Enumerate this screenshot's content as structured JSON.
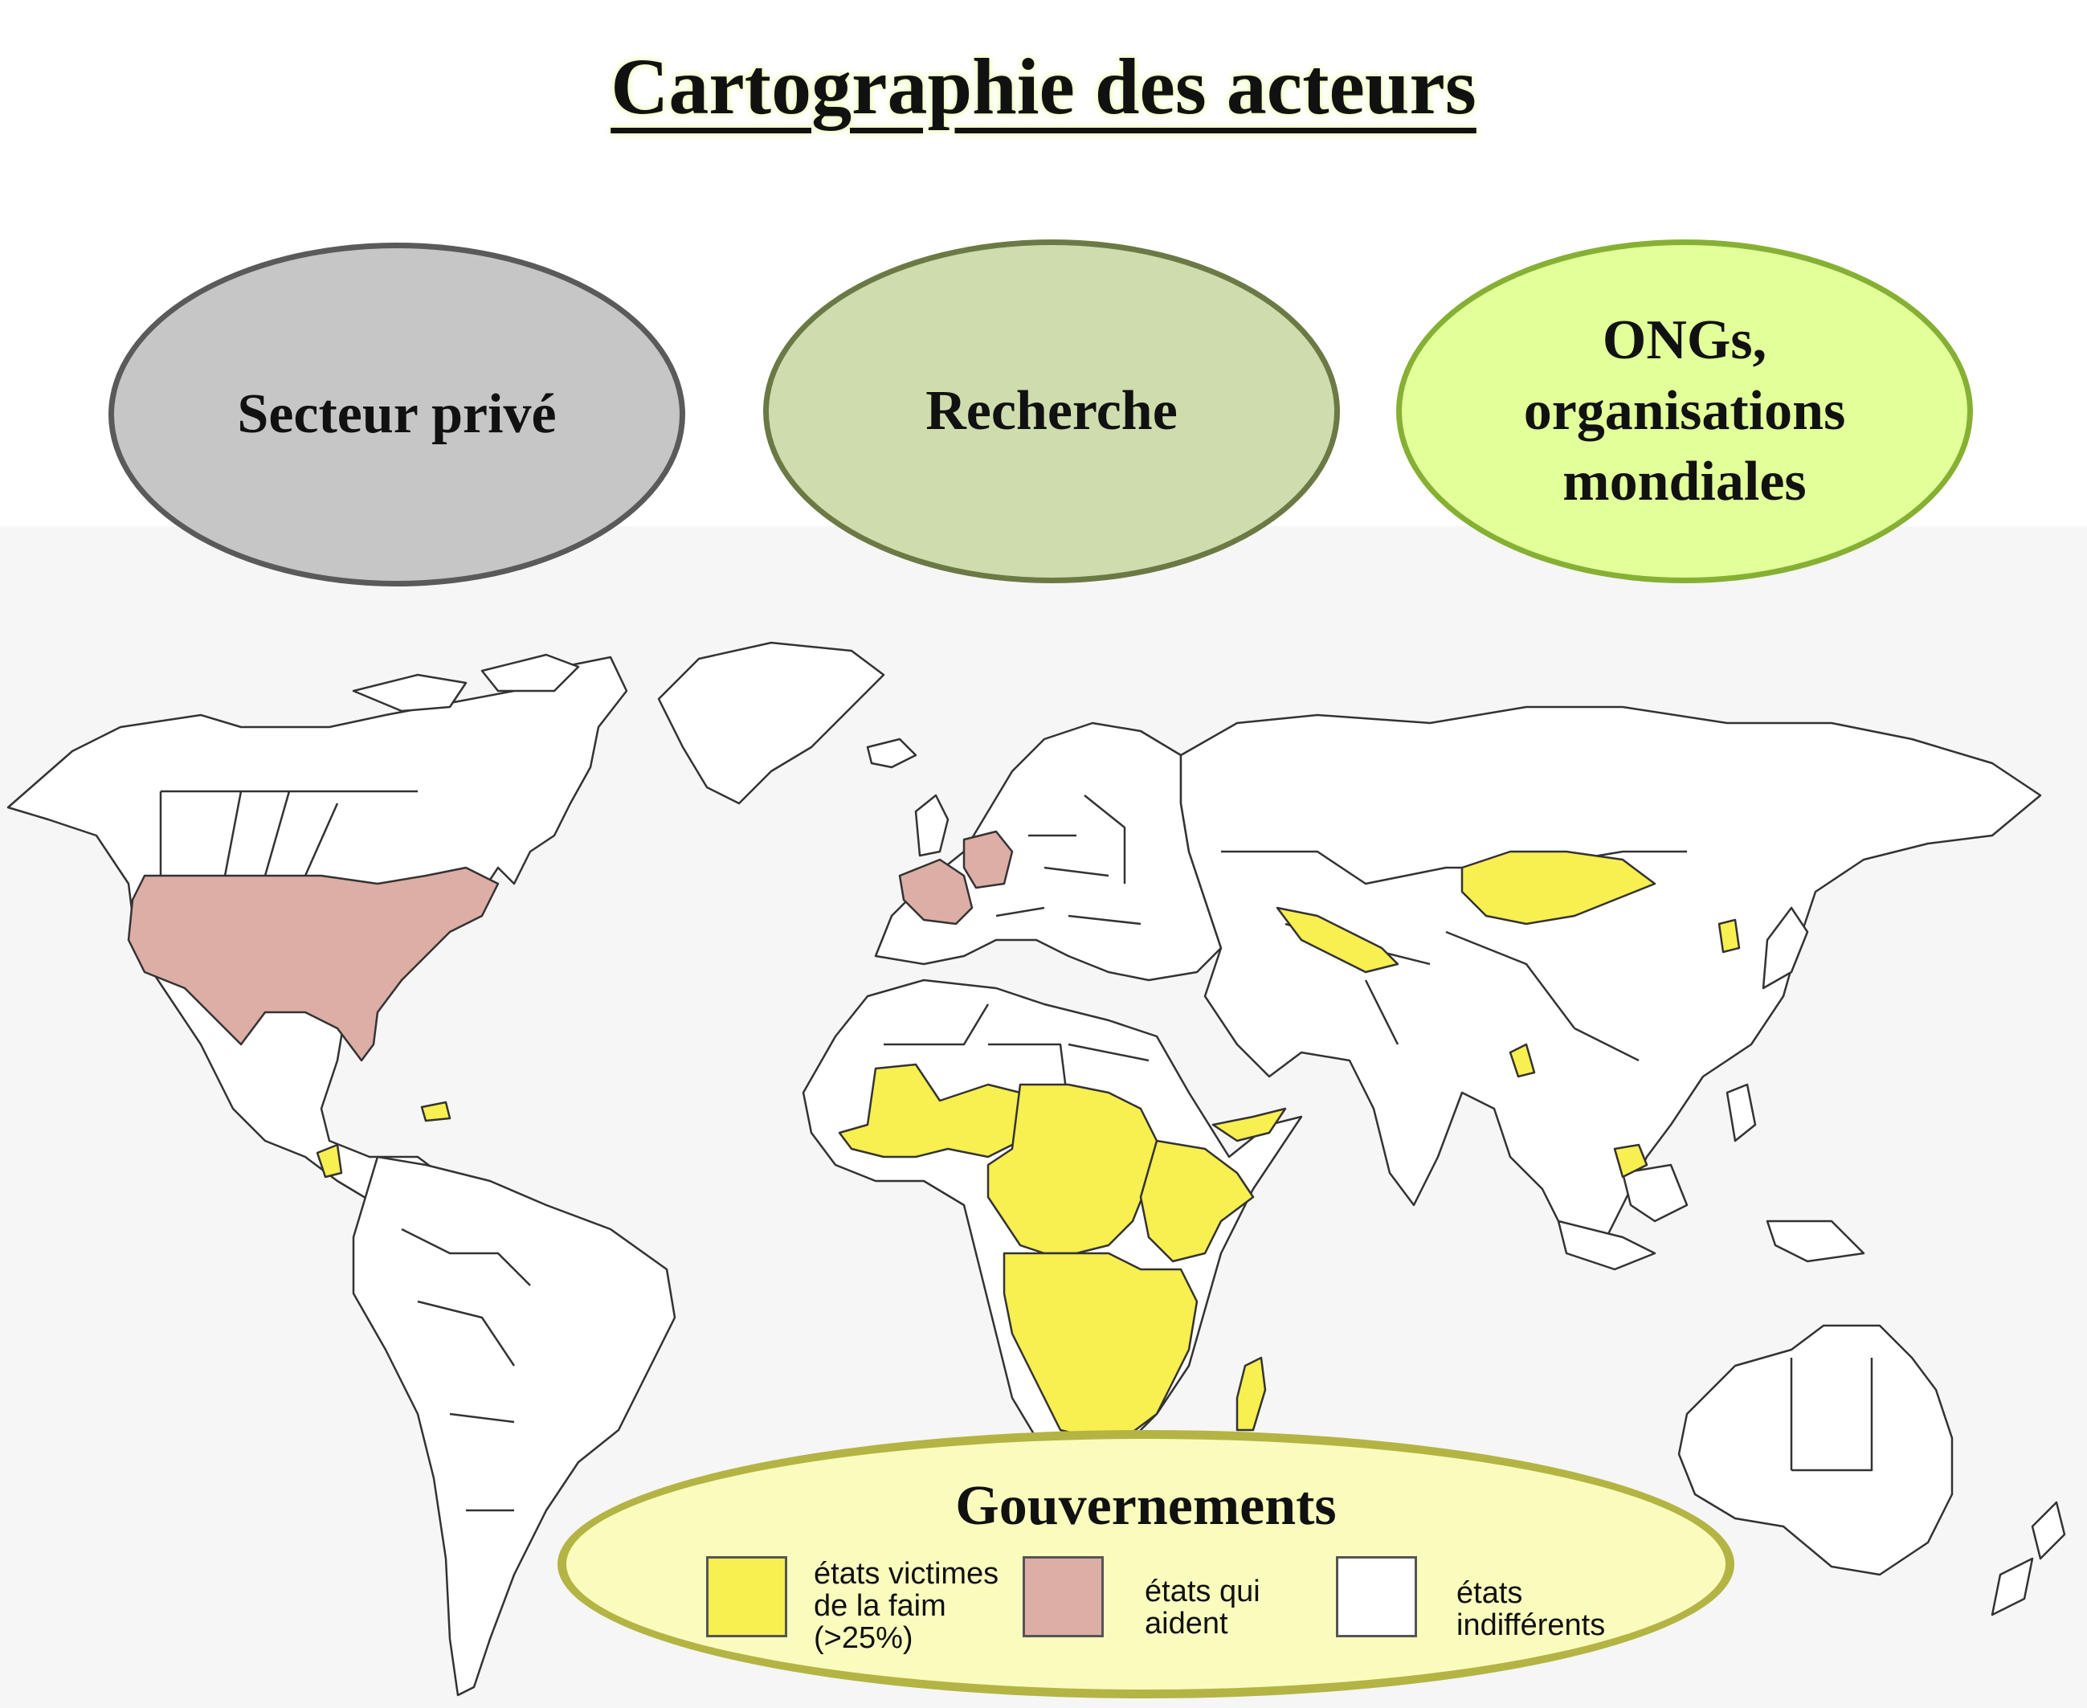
{
  "title": "Cartographie des acteurs",
  "actors": {
    "private_sector": "Secteur privé",
    "research": "Recherche",
    "ngo_lines": [
      "ONGs,",
      "organisations",
      "mondiales"
    ]
  },
  "governments": {
    "title": "Gouvernements",
    "legend": [
      {
        "lines": [
          "états victimes",
          "de la faim",
          "(>25%)"
        ],
        "color": "#f8ef50"
      },
      {
        "lines": [
          "états qui",
          "aident"
        ],
        "color": "#dcaea5"
      },
      {
        "lines": [
          "états",
          "indifférents"
        ],
        "color": "#ffffff"
      }
    ]
  },
  "colors": {
    "hunger": "#f8ef50",
    "aid": "#dcaea5",
    "indifferent": "#ffffff",
    "border": "#333333"
  }
}
